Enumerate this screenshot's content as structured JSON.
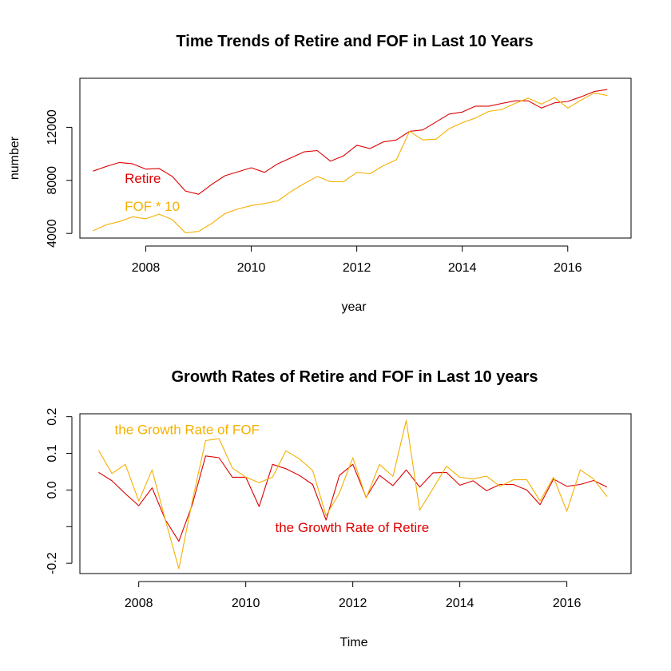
{
  "colors": {
    "retire": "#dd0000",
    "fof": "#f5b000",
    "axis": "#000000"
  },
  "chart_data": [
    {
      "type": "line",
      "title": "Time Trends of Retire and FOF in Last 10 Years",
      "xlabel": "year",
      "ylabel": "number",
      "xlim": [
        2006.75,
        2017.2
      ],
      "ylim": [
        3650,
        15700
      ],
      "xticks": [
        2008,
        2010,
        2012,
        2014,
        2016
      ],
      "yticks": [
        4000,
        8000,
        12000
      ],
      "x": [
        2007.0,
        2007.25,
        2007.5,
        2007.75,
        2008.0,
        2008.25,
        2008.5,
        2008.75,
        2009.0,
        2009.25,
        2009.5,
        2009.75,
        2010.0,
        2010.25,
        2010.5,
        2010.75,
        2011.0,
        2011.25,
        2011.5,
        2011.75,
        2012.0,
        2012.25,
        2012.5,
        2012.75,
        2013.0,
        2013.25,
        2013.5,
        2013.75,
        2014.0,
        2014.25,
        2014.5,
        2014.75,
        2015.0,
        2015.25,
        2015.5,
        2015.75,
        2016.0,
        2016.25,
        2016.5,
        2016.75
      ],
      "series": [
        {
          "name": "Retire",
          "color_key": "retire",
          "values": [
            8700,
            9050,
            9350,
            9250,
            8850,
            8900,
            8300,
            7200,
            6950,
            7700,
            8350,
            8650,
            8950,
            8600,
            9250,
            9700,
            10150,
            10250,
            9450,
            9850,
            10650,
            10400,
            10900,
            11050,
            11700,
            11800,
            12400,
            13000,
            13150,
            13600,
            13600,
            13800,
            14000,
            14000,
            13450,
            13850,
            13950,
            14300,
            14700,
            14850
          ]
        },
        {
          "name": "FOF * 10",
          "color_key": "fof",
          "values": [
            4200,
            4650,
            4900,
            5250,
            5100,
            5450,
            5050,
            4050,
            4150,
            4750,
            5500,
            5850,
            6100,
            6250,
            6450,
            7150,
            7750,
            8300,
            7900,
            7900,
            8600,
            8500,
            9100,
            9550,
            11700,
            11050,
            11100,
            11900,
            12350,
            12700,
            13200,
            13350,
            13800,
            14200,
            13750,
            14250,
            13450,
            14050,
            14600,
            14400
          ]
        }
      ],
      "annotations": [
        {
          "text": "Retire",
          "color_key": "retire",
          "x": 2007.6,
          "y": 7800
        },
        {
          "text": "FOF * 10",
          "color_key": "fof",
          "x": 2007.6,
          "y": 5700
        }
      ]
    },
    {
      "type": "line",
      "title": "Growth Rates of Retire and FOF in Last 10 years",
      "xlabel": "Time",
      "ylabel": "",
      "xlim": [
        2006.9,
        2017.2
      ],
      "ylim": [
        -0.228,
        0.208
      ],
      "xticks": [
        2008,
        2010,
        2012,
        2014,
        2016
      ],
      "yticks": [
        -0.2,
        -0.1,
        0.0,
        0.1,
        0.2
      ],
      "ytick_labels": [
        "-0.2",
        "",
        "0.0",
        "0.1",
        "0.2"
      ],
      "x": [
        2007.25,
        2007.5,
        2007.75,
        2008.0,
        2008.25,
        2008.5,
        2008.75,
        2009.0,
        2009.25,
        2009.5,
        2009.75,
        2010.0,
        2010.25,
        2010.5,
        2010.75,
        2011.0,
        2011.25,
        2011.5,
        2011.75,
        2012.0,
        2012.25,
        2012.5,
        2012.75,
        2013.0,
        2013.25,
        2013.5,
        2013.75,
        2014.0,
        2014.25,
        2014.5,
        2014.75,
        2015.0,
        2015.25,
        2015.5,
        2015.75,
        2016.0,
        2016.25,
        2016.5,
        2016.75
      ],
      "series": [
        {
          "name": "the Growth Rate of Retire",
          "color_key": "retire",
          "values": [
            0.048,
            0.025,
            -0.01,
            -0.043,
            0.006,
            -0.082,
            -0.14,
            -0.04,
            0.093,
            0.088,
            0.035,
            0.035,
            -0.045,
            0.07,
            0.058,
            0.04,
            0.015,
            -0.082,
            0.04,
            0.07,
            -0.02,
            0.04,
            0.012,
            0.055,
            0.008,
            0.047,
            0.048,
            0.013,
            0.025,
            -0.002,
            0.015,
            0.015,
            0.0,
            -0.04,
            0.03,
            0.01,
            0.015,
            0.026,
            0.008
          ]
        },
        {
          "name": "the Growth Rate of FOF",
          "color_key": "fof",
          "values": [
            0.108,
            0.045,
            0.07,
            -0.03,
            0.055,
            -0.083,
            -0.215,
            -0.03,
            0.135,
            0.14,
            0.06,
            0.035,
            0.02,
            0.035,
            0.107,
            0.085,
            0.053,
            -0.07,
            -0.008,
            0.088,
            -0.022,
            0.07,
            0.037,
            0.19,
            -0.055,
            0.004,
            0.065,
            0.035,
            0.03,
            0.038,
            0.01,
            0.028,
            0.028,
            -0.03,
            0.035,
            -0.058,
            0.055,
            0.03,
            -0.018
          ]
        }
      ],
      "annotations": [
        {
          "text": "the Growth Rate of FOF",
          "color_key": "fof",
          "x": 2007.55,
          "y": 0.152
        },
        {
          "text": "the Growth Rate of Retire",
          "color_key": "retire",
          "x": 2010.55,
          "y": -0.115
        }
      ]
    }
  ]
}
